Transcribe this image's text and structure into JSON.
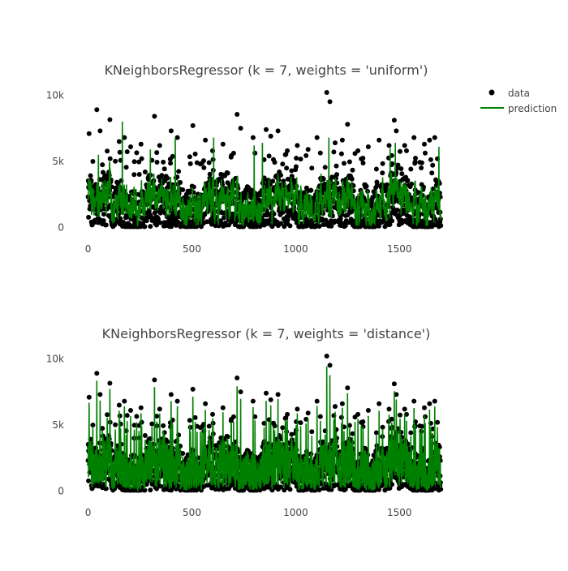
{
  "legend": {
    "data_label": "data",
    "prediction_label": "prediction",
    "data_color": "#000000",
    "prediction_color": "#008000"
  },
  "chart_data": [
    {
      "type": "scatter",
      "title": "KNeighborsRegressor (k = 7, weights = 'uniform')",
      "xlabel": "",
      "ylabel": "",
      "xlim": [
        -10,
        1710
      ],
      "ylim": [
        -200,
        10200
      ],
      "x_ticks": [
        0,
        500,
        1000,
        1500
      ],
      "x_tick_labels": [
        "0",
        "500",
        "1000",
        "1500"
      ],
      "y_ticks": [
        0,
        5000,
        10000
      ],
      "y_tick_labels": [
        "0",
        "5k",
        "10k"
      ],
      "grid": false,
      "legend_position": "top-right",
      "series": [
        {
          "name": "data",
          "mode": "markers",
          "color": "#000000",
          "n_points": 1700,
          "typical_range": [
            100,
            4500
          ],
          "outliers": [
            {
              "x": 5,
              "y": 7100
            },
            {
              "x": 42,
              "y": 8900
            },
            {
              "x": 58,
              "y": 7300
            },
            {
              "x": 105,
              "y": 8150
            },
            {
              "x": 150,
              "y": 6500
            },
            {
              "x": 175,
              "y": 6800
            },
            {
              "x": 205,
              "y": 6100
            },
            {
              "x": 255,
              "y": 6300
            },
            {
              "x": 320,
              "y": 8400
            },
            {
              "x": 345,
              "y": 6200
            },
            {
              "x": 400,
              "y": 7300
            },
            {
              "x": 430,
              "y": 6800
            },
            {
              "x": 505,
              "y": 7700
            },
            {
              "x": 565,
              "y": 6600
            },
            {
              "x": 600,
              "y": 5800
            },
            {
              "x": 650,
              "y": 6300
            },
            {
              "x": 718,
              "y": 8550
            },
            {
              "x": 735,
              "y": 7500
            },
            {
              "x": 795,
              "y": 6800
            },
            {
              "x": 858,
              "y": 7400
            },
            {
              "x": 880,
              "y": 6900
            },
            {
              "x": 915,
              "y": 7300
            },
            {
              "x": 960,
              "y": 5800
            },
            {
              "x": 1008,
              "y": 6200
            },
            {
              "x": 1060,
              "y": 5900
            },
            {
              "x": 1103,
              "y": 6800
            },
            {
              "x": 1150,
              "y": 10200
            },
            {
              "x": 1165,
              "y": 9500
            },
            {
              "x": 1190,
              "y": 6400
            },
            {
              "x": 1225,
              "y": 6600
            },
            {
              "x": 1250,
              "y": 7800
            },
            {
              "x": 1300,
              "y": 5800
            },
            {
              "x": 1350,
              "y": 6100
            },
            {
              "x": 1402,
              "y": 6600
            },
            {
              "x": 1450,
              "y": 6200
            },
            {
              "x": 1475,
              "y": 8100
            },
            {
              "x": 1485,
              "y": 7300
            },
            {
              "x": 1525,
              "y": 6200
            },
            {
              "x": 1570,
              "y": 6800
            },
            {
              "x": 1620,
              "y": 6300
            },
            {
              "x": 1645,
              "y": 6600
            },
            {
              "x": 1670,
              "y": 6800
            }
          ]
        },
        {
          "name": "prediction",
          "mode": "lines",
          "color": "#008000",
          "n_points": 1700,
          "typical_range": [
            300,
            4000
          ],
          "peaks": [
            {
              "x": 50,
              "y": 5500
            },
            {
              "x": 165,
              "y": 8000
            },
            {
              "x": 300,
              "y": 5900
            },
            {
              "x": 420,
              "y": 6800
            },
            {
              "x": 605,
              "y": 6800
            },
            {
              "x": 800,
              "y": 6200
            },
            {
              "x": 840,
              "y": 6400
            },
            {
              "x": 1160,
              "y": 6800
            },
            {
              "x": 1455,
              "y": 6000
            },
            {
              "x": 1480,
              "y": 6400
            },
            {
              "x": 1690,
              "y": 6100
            }
          ]
        }
      ]
    },
    {
      "type": "scatter",
      "title": "KNeighborsRegressor (k = 7, weights = 'distance')",
      "xlabel": "",
      "ylabel": "",
      "xlim": [
        -10,
        1710
      ],
      "ylim": [
        -200,
        10200
      ],
      "x_ticks": [
        0,
        500,
        1000,
        1500
      ],
      "x_tick_labels": [
        "0",
        "500",
        "1000",
        "1500"
      ],
      "y_ticks": [
        0,
        5000,
        10000
      ],
      "y_tick_labels": [
        "0",
        "5k",
        "10k"
      ],
      "grid": false,
      "series": [
        {
          "name": "data",
          "mode": "markers",
          "color": "#000000",
          "n_points": 1700,
          "typical_range": [
            100,
            4500
          ],
          "note_same_as_top": true
        },
        {
          "name": "prediction",
          "mode": "lines",
          "color": "#008000",
          "n_points": 1700,
          "follows_data": true
        }
      ]
    }
  ]
}
